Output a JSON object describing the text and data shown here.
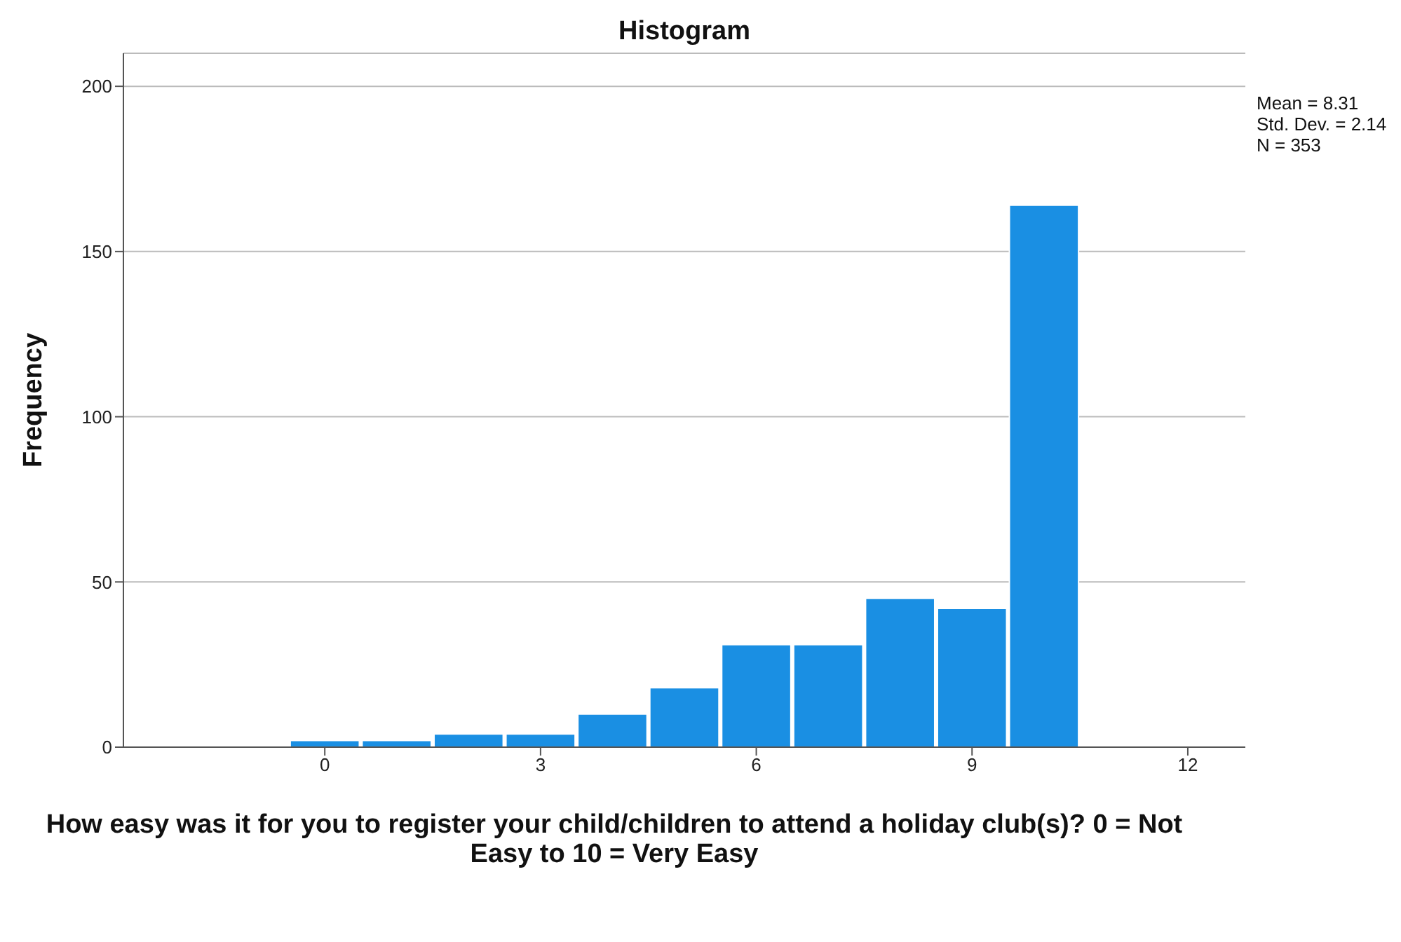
{
  "chart_data": {
    "type": "histogram",
    "title": "Histogram",
    "xlabel": "How easy was it for you to register your child/children to attend a holiday club(s)? 0 = Not Easy to 10 = Very Easy",
    "ylabel": "Frequency",
    "bins": [
      -0.5,
      0.5,
      1.5,
      2.5,
      3.5,
      4.5,
      5.5,
      6.5,
      7.5,
      8.5,
      9.5,
      10.5
    ],
    "values": [
      2,
      2,
      4,
      4,
      10,
      18,
      31,
      31,
      45,
      42,
      164
    ],
    "color": "#1a8fe3",
    "xlim": [
      -2.8,
      12.8
    ],
    "xticks": [
      0,
      3,
      6,
      9,
      12
    ],
    "ylim": [
      0,
      210
    ],
    "yticks": [
      0,
      50,
      100,
      150,
      200
    ],
    "grid": "y",
    "annotations": [
      "Mean = 8.31",
      "Std. Dev. = 2.14",
      "N = 353"
    ]
  }
}
